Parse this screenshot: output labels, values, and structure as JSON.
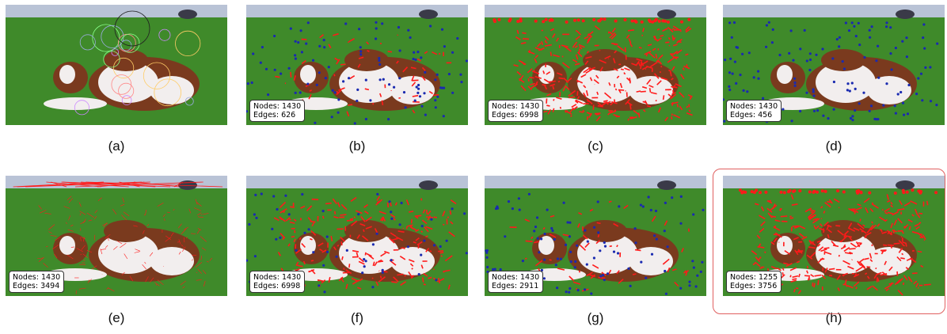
{
  "panels": [
    {
      "id": "a",
      "caption": "(a)",
      "stats": null,
      "style": "keypoints"
    },
    {
      "id": "b",
      "caption": "(b)",
      "stats": {
        "nodes": "Nodes: 1430",
        "edges": "Edges: 626"
      },
      "style": "blue-red"
    },
    {
      "id": "c",
      "caption": "(c)",
      "stats": {
        "nodes": "Nodes: 1430",
        "edges": "Edges: 6998"
      },
      "style": "red-heavy"
    },
    {
      "id": "d",
      "caption": "(d)",
      "stats": {
        "nodes": "Nodes: 1430",
        "edges": "Edges: 456"
      },
      "style": "blue-only"
    },
    {
      "id": "e",
      "caption": "(e)",
      "stats": {
        "nodes": "Nodes: 1430",
        "edges": "Edges: 3494"
      },
      "style": "triangulation"
    },
    {
      "id": "f",
      "caption": "(f)",
      "stats": {
        "nodes": "Nodes: 1430",
        "edges": "Edges: 6998"
      },
      "style": "red-blue"
    },
    {
      "id": "g",
      "caption": "(g)",
      "stats": {
        "nodes": "Nodes: 1430",
        "edges": "Edges: 2911"
      },
      "style": "blue-red"
    },
    {
      "id": "h",
      "caption": "(h)",
      "stats": {
        "nodes": "Nodes: 1255",
        "edges": "Edges: 3756"
      },
      "style": "red-heavy"
    }
  ],
  "colors": {
    "grass": "#3f8a2a",
    "sky": "#b9c3d6",
    "cow_brown": "#7a3a1e",
    "cow_white": "#f2eeee",
    "node_blue": "#1a2ab0",
    "edge_red": "#ff1a1a",
    "highlight": "#e06060"
  }
}
